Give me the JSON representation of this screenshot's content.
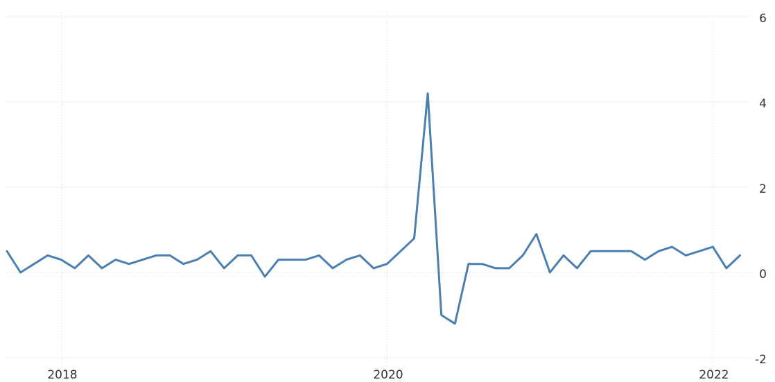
{
  "chart_data": {
    "type": "line",
    "title": "",
    "xlabel": "",
    "ylabel": "",
    "ylim": [
      -2,
      6
    ],
    "y_ticks": [
      "6",
      "4",
      "2",
      "0",
      "-2"
    ],
    "x_ticks": [
      "2018",
      "2020",
      "2022"
    ],
    "grid": true,
    "legend": "none",
    "colors": {
      "line": "#4a7fb0",
      "grid": "#c9c9c9",
      "text": "#333333"
    },
    "series": [
      {
        "x": [
          "2017-09",
          "2017-10",
          "2017-11",
          "2017-12",
          "2018-01",
          "2018-02",
          "2018-03",
          "2018-04",
          "2018-05",
          "2018-06",
          "2018-07",
          "2018-08",
          "2018-09",
          "2018-10",
          "2018-11",
          "2018-12",
          "2019-01",
          "2019-02",
          "2019-03",
          "2019-04",
          "2019-05",
          "2019-06",
          "2019-07",
          "2019-08",
          "2019-09",
          "2019-10",
          "2019-11",
          "2019-12",
          "2020-01",
          "2020-02",
          "2020-03",
          "2020-04",
          "2020-05",
          "2020-06",
          "2020-07",
          "2020-08",
          "2020-09",
          "2020-10",
          "2020-11",
          "2020-12",
          "2021-01",
          "2021-02",
          "2021-03",
          "2021-04",
          "2021-05",
          "2021-06",
          "2021-07",
          "2021-08",
          "2021-09",
          "2021-10",
          "2021-11",
          "2021-12",
          "2022-01",
          "2022-02",
          "2022-03"
        ],
        "values": [
          0.5,
          0.0,
          0.2,
          0.4,
          0.3,
          0.1,
          0.4,
          0.1,
          0.3,
          0.2,
          0.3,
          0.4,
          0.4,
          0.2,
          0.3,
          0.5,
          0.1,
          0.4,
          0.4,
          -0.1,
          0.3,
          0.3,
          0.3,
          0.4,
          0.1,
          0.3,
          0.4,
          0.1,
          0.2,
          0.5,
          0.8,
          4.2,
          -1.0,
          -1.2,
          0.2,
          0.2,
          0.1,
          0.1,
          0.4,
          0.9,
          0.0,
          0.4,
          0.1,
          0.5,
          0.5,
          0.5,
          0.5,
          0.3,
          0.5,
          0.6,
          0.4,
          0.5,
          0.6,
          0.1,
          0.4
        ]
      }
    ]
  }
}
